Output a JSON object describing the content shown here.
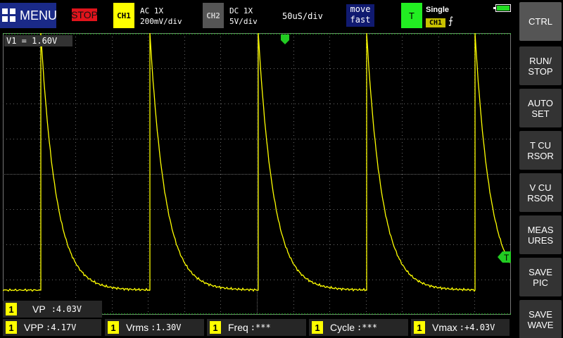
{
  "top": {
    "menu_label": "MENU",
    "run_state": "STOP",
    "ch1": {
      "label": "CH1",
      "coupling": "AC  1X",
      "scale": "200mV/div"
    },
    "ch2": {
      "label": "CH2",
      "coupling": "DC  1X",
      "scale": "5V/div"
    },
    "timebase": "50uS/div",
    "move_line1": "move",
    "move_line2": "fast",
    "trigger": {
      "label": "T",
      "mode": "Single",
      "source": "CH1",
      "edge": "⨍"
    }
  },
  "scope": {
    "v1_readout": "V1 = 1.60V",
    "trigger_marker": "T"
  },
  "sidebar": {
    "buttons": [
      {
        "label": "CTRL"
      },
      {
        "label": "RUN/\nSTOP"
      },
      {
        "label": "AUTO\nSET"
      },
      {
        "label": "T CU\nRSOR"
      },
      {
        "label": "V CU\nRSOR"
      },
      {
        "label": "MEAS\nURES"
      },
      {
        "label": "SAVE\nPIC"
      },
      {
        "label": "SAVE\nWAVE"
      }
    ]
  },
  "measurements": {
    "vp": {
      "num": "1",
      "label": "VP",
      "value": ":4.03V"
    },
    "row": [
      {
        "num": "1",
        "label": "VPP",
        "value": ":4.17V"
      },
      {
        "num": "1",
        "label": "Vrms",
        "value": ":1.30V"
      },
      {
        "num": "1",
        "label": "Freq",
        "value": ":***"
      },
      {
        "num": "1",
        "label": "Cycle",
        "value": ":***"
      },
      {
        "num": "1",
        "label": "Vmax",
        "value": ":+4.03V"
      }
    ]
  },
  "colors": {
    "trace": "#ffff00",
    "grid": "#8a8a8a",
    "cursor": "#22cc22",
    "stop": "#e0141c"
  }
}
